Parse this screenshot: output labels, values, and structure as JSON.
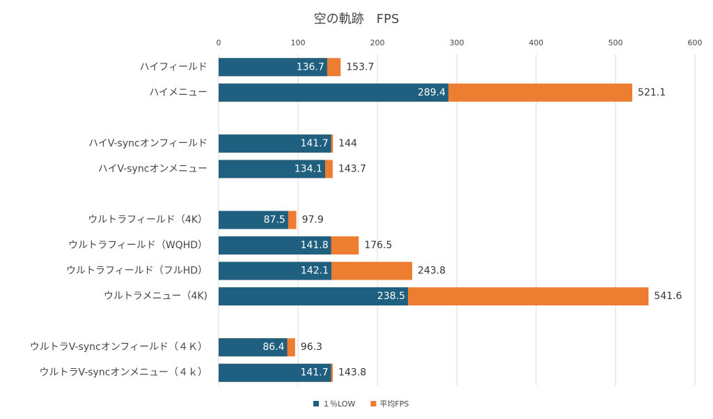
{
  "chart_data": {
    "type": "bar",
    "orientation": "horizontal",
    "overlap": true,
    "title": "空の軌跡　FPS",
    "categories": [
      "ハイフィールド",
      "ハイメニュー",
      null,
      "ハイV-syncオンフィールド",
      "ハイV-syncオンメニュー",
      null,
      "ウルトラフィールド（4K）",
      "ウルトラフィールド（WQHD）",
      "ウルトラフィールド（フルHD）",
      "ウルトラメニュー（4K)",
      null,
      "ウルトラV-syncオンフィールド（４Ｋ）",
      "ウルトラV-syncオンメニュー（４ｋ）"
    ],
    "series": [
      {
        "name": "１％LOW",
        "color": "#1f5f80",
        "values": [
          136.7,
          289.4,
          null,
          141.7,
          134.1,
          null,
          87.5,
          141.8,
          142.1,
          238.5,
          null,
          86.4,
          141.7
        ]
      },
      {
        "name": "平均FPS",
        "color": "#ed7d31",
        "values": [
          153.7,
          521.1,
          null,
          144,
          143.7,
          null,
          97.9,
          176.5,
          243.8,
          541.6,
          null,
          96.3,
          143.8
        ]
      }
    ],
    "xlim": [
      0,
      600
    ],
    "xticks": [
      0,
      100,
      200,
      300,
      400,
      500,
      600
    ],
    "grid": true,
    "legend": "bottom"
  }
}
